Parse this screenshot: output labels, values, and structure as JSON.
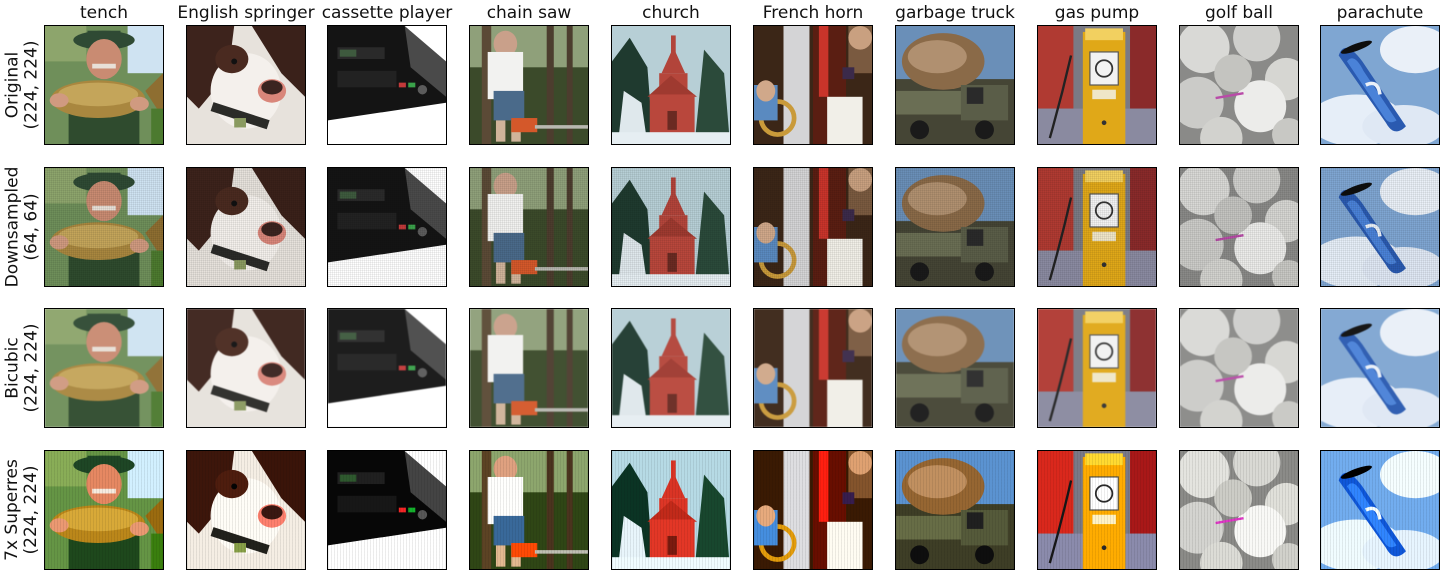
{
  "columns": [
    {
      "key": "tench",
      "label": "tench"
    },
    {
      "key": "springer",
      "label": "English springer"
    },
    {
      "key": "cassette",
      "label": "cassette player"
    },
    {
      "key": "chainsaw",
      "label": "chain saw"
    },
    {
      "key": "church",
      "label": "church"
    },
    {
      "key": "horn",
      "label": "French horn"
    },
    {
      "key": "truck",
      "label": "garbage truck"
    },
    {
      "key": "pump",
      "label": "gas pump"
    },
    {
      "key": "golf",
      "label": "golf ball"
    },
    {
      "key": "parachute",
      "label": "parachute"
    }
  ],
  "rows": [
    {
      "key": "orig",
      "line1": "Original",
      "line2": "(224, 224)"
    },
    {
      "key": "ds",
      "line1": "Downsampled",
      "line2": "(64, 64)"
    },
    {
      "key": "bc",
      "line1": "Bicubic",
      "line2": "(224, 224)"
    },
    {
      "key": "sr",
      "line1": "7x Superres",
      "line2": "(224, 224)"
    }
  ]
}
